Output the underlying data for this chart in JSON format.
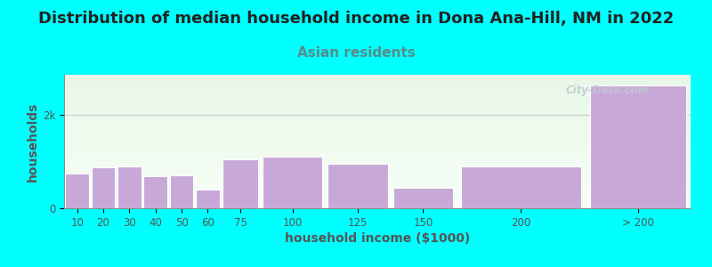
{
  "title": "Distribution of median household income in Dona Ana-Hill, NM in 2022",
  "subtitle": "Asian residents",
  "xlabel": "household income ($1000)",
  "ylabel": "households",
  "bar_labels": [
    "10",
    "20",
    "30",
    "40",
    "50",
    "60",
    "75",
    "100",
    "125",
    "150",
    "200",
    "> 200"
  ],
  "bar_values": [
    750,
    870,
    900,
    680,
    700,
    390,
    1050,
    1100,
    950,
    430,
    900,
    2620
  ],
  "bar_edges": [
    0,
    10,
    20,
    30,
    40,
    50,
    60,
    75,
    100,
    125,
    150,
    200,
    240
  ],
  "bar_color": "#c8a8d8",
  "bar_edgecolor": "#ffffff",
  "bg_outer": "#00ffff",
  "bg_plot_grad_top": "#e8f8e8",
  "bg_plot_grad_bottom": "#f8fff8",
  "ytick_labels": [
    "0",
    "2k"
  ],
  "ytick_values": [
    0,
    2000
  ],
  "ylim": [
    0,
    2850
  ],
  "title_fontsize": 13,
  "subtitle_fontsize": 11,
  "subtitle_color": "#5a8a8a",
  "title_color": "#222222",
  "axis_label_fontsize": 10,
  "tick_fontsize": 8.5,
  "tick_color": "#555555",
  "watermark": "City-Data.com",
  "watermark_color": "#c0c8d0",
  "gridline_color": "#cccccc",
  "spine_color": "#888888"
}
